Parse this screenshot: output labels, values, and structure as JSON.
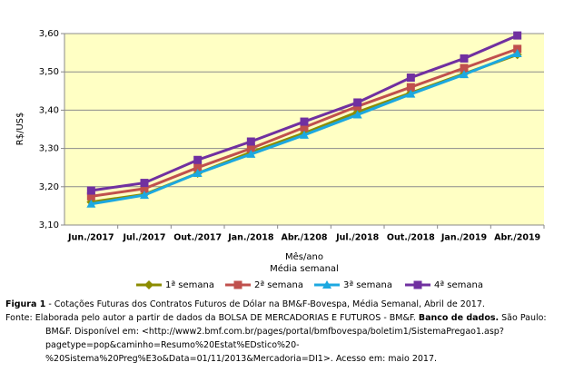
{
  "chart_data": {
    "type": "line",
    "categories": [
      "Jun./2017",
      "Jul./2017",
      "Out./2017",
      "Jan./2018",
      "Abr./1208",
      "Jul./2018",
      "Out./2018",
      "Jan./2019",
      "Abr./2019"
    ],
    "series": [
      {
        "name": "1ª semana",
        "color": "#8c8c00",
        "marker": "diamond",
        "values": [
          3.16,
          3.18,
          3.235,
          3.29,
          3.34,
          3.395,
          3.445,
          3.495,
          3.545
        ]
      },
      {
        "name": "2ª semana",
        "color": "#c0504d",
        "marker": "square",
        "values": [
          3.175,
          3.195,
          3.25,
          3.3,
          3.355,
          3.41,
          3.46,
          3.51,
          3.56
        ]
      },
      {
        "name": "3ª semana",
        "color": "#1ca8e0",
        "marker": "triangle",
        "values": [
          3.155,
          3.178,
          3.235,
          3.285,
          3.335,
          3.388,
          3.442,
          3.493,
          3.548
        ]
      },
      {
        "name": "4ª semana",
        "color": "#7030a0",
        "marker": "square",
        "values": [
          3.19,
          3.21,
          3.27,
          3.318,
          3.37,
          3.42,
          3.485,
          3.535,
          3.595
        ]
      }
    ],
    "ylim": [
      3.1,
      3.6
    ],
    "yticks": [
      {
        "value": 3.1,
        "label": "3,10"
      },
      {
        "value": 3.2,
        "label": "3,20"
      },
      {
        "value": 3.3,
        "label": "3,30"
      },
      {
        "value": 3.4,
        "label": "3,40"
      },
      {
        "value": 3.5,
        "label": "3,50"
      },
      {
        "value": 3.6,
        "label": "3,60"
      }
    ],
    "ylabel": "R$/US$",
    "xlabel": "Mês/ano",
    "subtitle": "Média semanal",
    "grid": true
  },
  "caption": {
    "figure_label": "Figura 1",
    "figure_text": " - Cotações Futuras dos Contratos Futuros de Dólar na BM&F-Bovespa, Média Semanal, Abril de 2017.",
    "source_label": "Fonte:",
    "source_text": " Elaborada pelo autor a partir de dados da BOLSA DE MERCADORIAS E FUTUROS - BM&F. ",
    "source_bold": "Banco de dados.",
    "source_rest": " São Paulo: BM&F. Disponível em: <http://www2.bmf.com.br/pages/portal/bmfbovespa/boletim1/SistemaPregao1.asp?pagetype=pop&caminho=Resumo%20Estat%EDstico%20-%20Sistema%20Preg%E3o&Data=01/11/2013&Mercadoria=DI1>. Acesso em: maio 2017."
  }
}
